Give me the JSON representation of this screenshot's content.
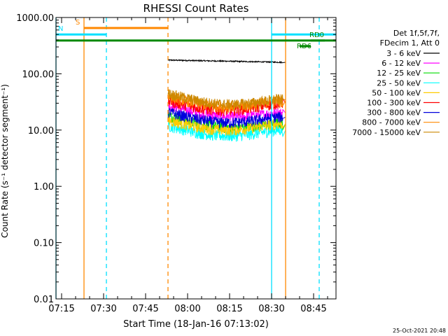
{
  "chart_data": {
    "type": "line",
    "title": "RHESSI Count Rates",
    "xlabel": "Start Time (18-Jan-16 07:13:02)",
    "ylabel": "Count Rate (s⁻¹ detector segment⁻¹)",
    "yscale": "log",
    "xlim": [
      "07:13",
      "08:53"
    ],
    "ylim": [
      0.01,
      1000
    ],
    "xticks": [
      "07:15",
      "07:30",
      "07:45",
      "08:00",
      "08:15",
      "08:30",
      "08:45"
    ],
    "yticks": [
      "0.01",
      "0.10",
      "1.00",
      "10.00",
      "100.00",
      "1000.00"
    ],
    "legend_position": "right",
    "legend_header": [
      "Det 1f,5f,7f,",
      "FDecim 1, Att 0"
    ],
    "data_start": "07:53",
    "data_end": "08:34",
    "curve_end": "08:35",
    "series": [
      {
        "name": "3 - 6 keV",
        "color": "#000000",
        "values": {
          "start": 175,
          "end": 160
        }
      },
      {
        "name": "6 - 12 keV",
        "color": "#ff00ff",
        "values": {
          "start": 28,
          "end": 20
        }
      },
      {
        "name": "12 - 25 keV",
        "color": "#00dd00",
        "values": {
          "start": 18,
          "end": 13
        }
      },
      {
        "name": "25 - 50 keV",
        "color": "#00ffff",
        "values": {
          "start": 12,
          "end": 10
        }
      },
      {
        "name": "50 - 100 keV",
        "color": "#ffcc00",
        "values": {
          "start": 15,
          "end": 13
        }
      },
      {
        "name": "100 - 300 keV",
        "color": "#ff0000",
        "values": {
          "start": 33,
          "end": 30
        }
      },
      {
        "name": "300 - 800 keV",
        "color": "#0000dd",
        "values": {
          "start": 21,
          "end": 17
        }
      },
      {
        "name": "800 - 7000 keV",
        "color": "#ff8800",
        "values": {
          "start": 40,
          "end": 33
        }
      },
      {
        "name": "7000 - 15000 keV",
        "color": "#cc8800",
        "values": {
          "start": 45,
          "end": 35
        }
      }
    ],
    "flags": [
      {
        "label": "S",
        "color": "#ff8800",
        "level": 650,
        "start": "07:23",
        "end": "07:53"
      },
      {
        "label": "N",
        "color": "#00e0ff",
        "level": 500,
        "start": "07:13",
        "end": "07:31"
      },
      {
        "label": "",
        "color": "#00e0ff",
        "level": 500,
        "start": "08:30",
        "end": "08:53"
      },
      {
        "label": "",
        "color": "#008800",
        "level": 390,
        "start": "07:13",
        "end": "08:53"
      },
      {
        "label": "RD6",
        "color": "#008800",
        "level": 310,
        "start": "08:40",
        "end": "08:44"
      },
      {
        "label": "RD0",
        "color": "#008800",
        "level": 390,
        "start": "08:44",
        "end": "08:49"
      }
    ],
    "vlines": [
      {
        "time": "07:13",
        "color": "#00e0ff",
        "style": "solid"
      },
      {
        "time": "07:23",
        "color": "#ff8800",
        "style": "solid"
      },
      {
        "time": "07:31",
        "color": "#00e0ff",
        "style": "dashed"
      },
      {
        "time": "07:53",
        "color": "#ff8800",
        "style": "dashed"
      },
      {
        "time": "08:30",
        "color": "#00e0ff",
        "style": "solid"
      },
      {
        "time": "08:35",
        "color": "#ff8800",
        "style": "solid"
      },
      {
        "time": "08:47",
        "color": "#00e0ff",
        "style": "dashed"
      }
    ],
    "timestamp": "25-Oct-2021 20:48"
  }
}
